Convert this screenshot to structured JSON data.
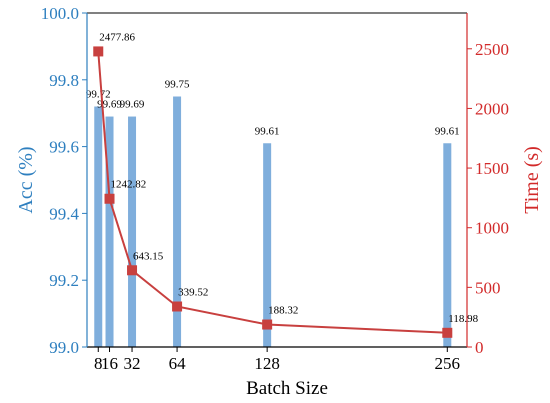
{
  "chart_data": {
    "type": "bar+line",
    "title": "",
    "xlabel": "Batch Size",
    "ylabel_left": "Acc (%)",
    "ylabel_right": "Time (s)",
    "x": [
      8,
      16,
      32,
      64,
      128,
      256
    ],
    "x_tick_labels": [
      "8",
      "16",
      "32",
      "64",
      "128",
      "256"
    ],
    "x_range": [
      0,
      270
    ],
    "ylim_left": [
      99.0,
      100.0
    ],
    "ylim_right": [
      0,
      2800
    ],
    "y_ticks_left": [
      "99.0",
      "99.2",
      "99.4",
      "99.6",
      "99.8",
      "100.0"
    ],
    "y_ticks_right": [
      "0",
      "500",
      "1000",
      "1500",
      "2000",
      "2500"
    ],
    "grid": false,
    "series": [
      {
        "type": "bar",
        "axis": "left",
        "values": [
          99.72,
          99.69,
          99.69,
          99.75,
          99.61,
          99.61
        ],
        "labels": [
          "99.72",
          "99.69",
          "99.69",
          "99.75",
          "99.61",
          "99.61"
        ]
      },
      {
        "type": "line",
        "axis": "right",
        "marker": "square",
        "values": [
          2477.86,
          1242.82,
          643.15,
          339.52,
          188.32,
          118.98
        ],
        "labels": [
          "2477.86",
          "1242.82",
          "643.15",
          "339.52",
          "188.32",
          "118.98"
        ]
      }
    ],
    "colors": {
      "bar": "#7faedc",
      "line": "#c8403f",
      "left_axis": "#2e7fbf",
      "right_axis": "#d22a2a"
    }
  }
}
